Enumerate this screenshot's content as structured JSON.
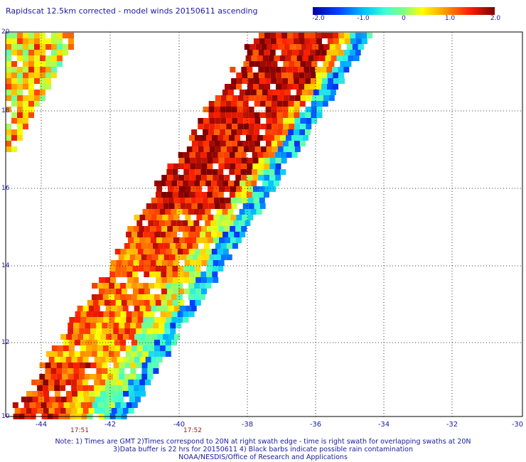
{
  "title": "Rapidscat 12.5km corrected - model winds 20150611 ascending",
  "colorbar": {
    "ticks": [
      "-2.0",
      "-1.0",
      "0",
      "1.0",
      "2.0"
    ],
    "min": -2.0,
    "max": 2.0
  },
  "map": {
    "lon_labels": [
      "-44",
      "-42",
      "-40",
      "-38",
      "-36",
      "-34",
      "-32",
      "-30"
    ],
    "lat_labels": [
      "20",
      "18",
      "16",
      "14",
      "12",
      "10"
    ],
    "time_labels": [
      "17:51",
      "17:52"
    ]
  },
  "notes": [
    "Note: 1) Times are GMT 2)Times correspond to 20N at right swath edge - time is right swath for overlapping swaths at 20N",
    "3)Data buffer is 22 hrs for 20150611 4) Black barbs indicate possible rain contamination",
    "NOAA/NESDIS/Office of Research and Applications"
  ],
  "colors": {
    "text": "#1a1aa0",
    "time": "#8b1a1a",
    "gridline": "#000000"
  }
}
